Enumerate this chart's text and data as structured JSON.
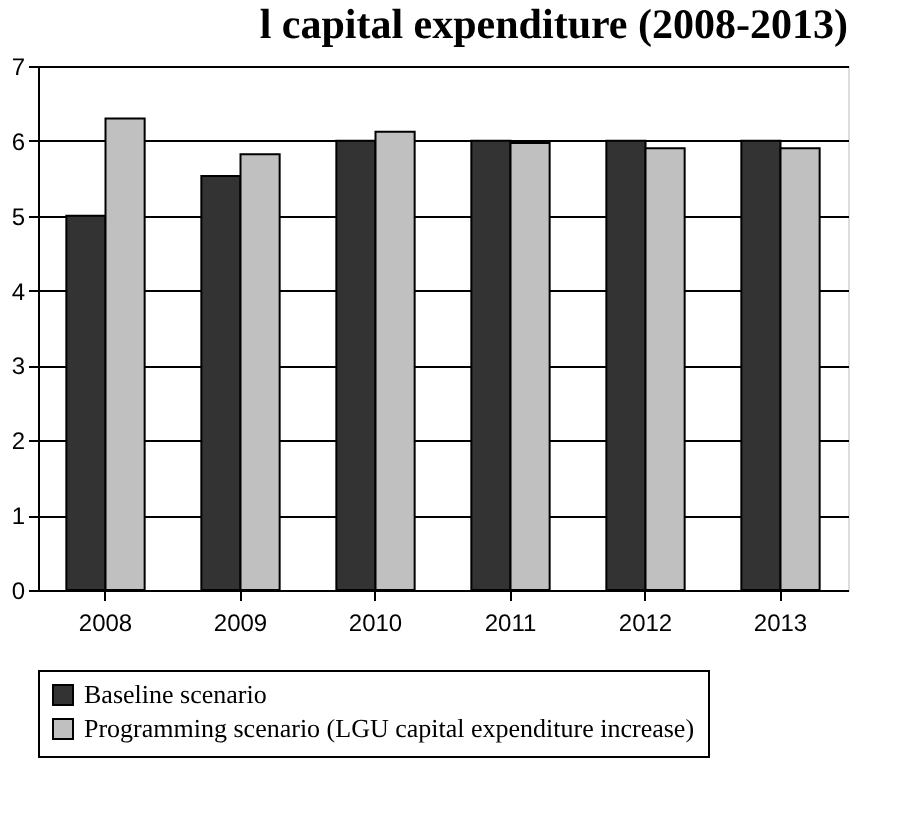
{
  "chart_data": {
    "type": "bar",
    "title": "l capital expenditure (2008-2013)",
    "categories": [
      "2008",
      "2009",
      "2010",
      "2011",
      "2012",
      "2013"
    ],
    "series": [
      {
        "name": "Baseline scenario",
        "color": "#333333",
        "values": [
          5.0,
          5.53,
          6.0,
          6.0,
          6.0,
          6.0
        ]
      },
      {
        "name": "Programming scenario (LGU capital expenditure increase)",
        "color": "#c0c0c0",
        "values": [
          6.3,
          5.82,
          6.12,
          5.97,
          5.9,
          5.9
        ]
      }
    ],
    "ylim": [
      0,
      7
    ],
    "yticks": [
      0,
      1,
      2,
      3,
      4,
      5,
      6,
      7
    ],
    "grid": "y",
    "legend": "bottom"
  }
}
